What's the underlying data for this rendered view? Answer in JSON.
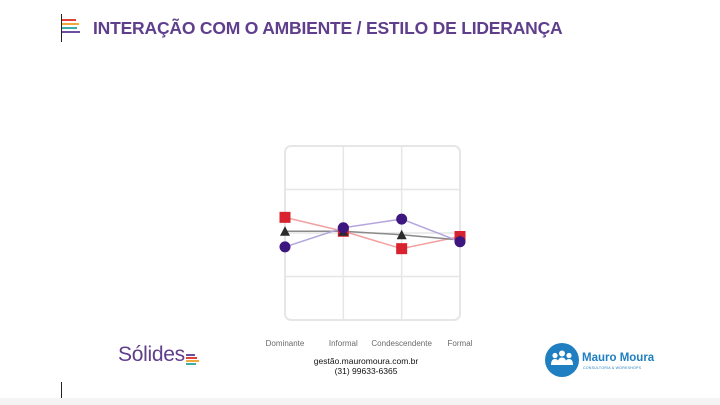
{
  "slide": {
    "title": "INTERAÇÃO COM O AMBIENTE / ESTILO DE LIDERANÇA",
    "title_bar_colors": [
      "#e0403a",
      "#f2a93b",
      "#3ab0a8",
      "#6b4fa0"
    ]
  },
  "footer": {
    "solides_logo": "Sólides",
    "solides_bar_colors": [
      "#6b4fa0",
      "#e0403a",
      "#f2a93b",
      "#3ab0a8"
    ],
    "email": "gestão.mauromoura.com.br",
    "phone": "(31) 99633-6365",
    "brand_name": "Mauro Moura",
    "brand_tagline": "CONSULTORIA & WORKSHOPS",
    "brand_icon": "people-group-icon",
    "brand_color": "#1f7fc0"
  },
  "chart_data": {
    "type": "line",
    "categories": [
      "Dominante",
      "Informal",
      "Condescendente",
      "Formal"
    ],
    "ylim": [
      0,
      100
    ],
    "grid": true,
    "series": [
      {
        "marker": "square",
        "color": "#d8222f",
        "line_color": "#f2a0a0",
        "values": [
          59,
          51,
          41,
          48
        ]
      },
      {
        "marker": "triangle",
        "color": "#2b2b2b",
        "line_color": "#8a8a8a",
        "values": [
          51,
          51,
          49,
          46
        ]
      },
      {
        "marker": "circle",
        "color": "#3d1680",
        "line_color": "#b3a6dd",
        "values": [
          42,
          53,
          58,
          45
        ]
      }
    ]
  }
}
